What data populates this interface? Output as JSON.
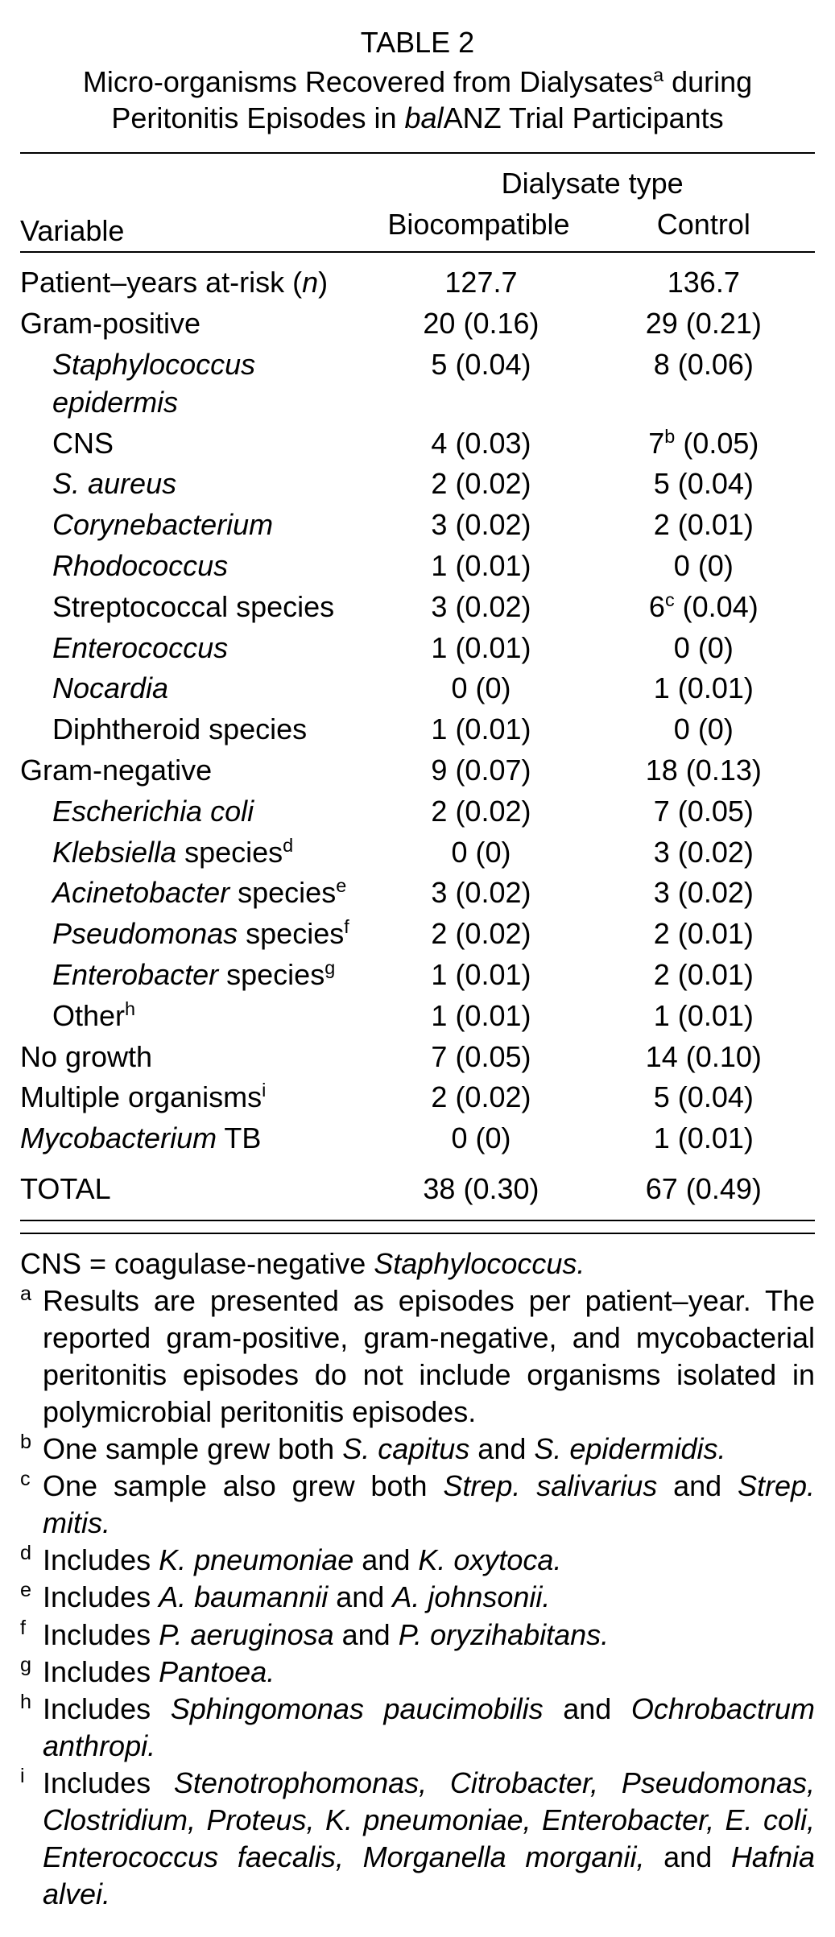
{
  "table_number": "TABLE 2",
  "title_parts": {
    "t1": "Micro-organisms Recovered from Dialysates",
    "t1_sup": "a",
    "t2": " during Peritonitis Episodes in ",
    "t3_italic": "bal",
    "t4": "ANZ Trial Participants"
  },
  "headers": {
    "variable": "Variable",
    "group": "Dialysate type",
    "col1": "Biocompatible",
    "col2": "Control"
  },
  "rows": [
    {
      "label_pre": "Patient–years at-risk (",
      "label_italic": "n",
      "label_post": ")",
      "sub": false,
      "bio": "127.7",
      "ctrl": "136.7"
    },
    {
      "label_pre": "Gram-positive",
      "sub": false,
      "bio": "20 (0.16)",
      "ctrl": "29 (0.21)"
    },
    {
      "label_italic": "Staphylococcus epidermis",
      "sub": true,
      "bio": "5 (0.04)",
      "ctrl": "8 (0.06)"
    },
    {
      "label_pre": "CNS",
      "sub": true,
      "bio": "4 (0.03)",
      "ctrl_pre": "7",
      "ctrl_sup": "b",
      "ctrl_post": " (0.05)"
    },
    {
      "label_italic": "S. aureus",
      "sub": true,
      "bio": "2 (0.02)",
      "ctrl": "5 (0.04)"
    },
    {
      "label_italic": "Corynebacterium",
      "sub": true,
      "bio": "3 (0.02)",
      "ctrl": "2 (0.01)"
    },
    {
      "label_italic": "Rhodococcus",
      "sub": true,
      "bio": "1 (0.01)",
      "ctrl": "0 (0)"
    },
    {
      "label_pre": "Streptococcal species",
      "sub": true,
      "bio": "3 (0.02)",
      "ctrl_pre": "6",
      "ctrl_sup": "c",
      "ctrl_post": " (0.04)"
    },
    {
      "label_italic": "Enterococcus",
      "sub": true,
      "bio": "1 (0.01)",
      "ctrl": "0 (0)"
    },
    {
      "label_italic": "Nocardia",
      "sub": true,
      "bio": "0 (0)",
      "ctrl": "1 (0.01)"
    },
    {
      "label_pre": "Diphtheroid species",
      "sub": true,
      "bio": "1 (0.01)",
      "ctrl": "0 (0)"
    },
    {
      "label_pre": "Gram-negative",
      "sub": false,
      "bio": "9 (0.07)",
      "ctrl": "18 (0.13)"
    },
    {
      "label_italic": "Escherichia coli",
      "sub": true,
      "bio": "2 (0.02)",
      "ctrl": "7 (0.05)"
    },
    {
      "label_italic": "Klebsiella",
      "label_post": " species",
      "label_sup": "d",
      "sub": true,
      "bio": "0 (0)",
      "ctrl": "3 (0.02)"
    },
    {
      "label_italic": "Acinetobacter",
      "label_post": " species",
      "label_sup": "e",
      "sub": true,
      "bio": "3 (0.02)",
      "ctrl": "3 (0.02)"
    },
    {
      "label_italic": "Pseudomonas",
      "label_post": " species",
      "label_sup": "f",
      "sub": true,
      "bio": "2 (0.02)",
      "ctrl": "2 (0.01)"
    },
    {
      "label_italic": "Enterobacter",
      "label_post": " species",
      "label_sup": "g",
      "sub": true,
      "bio": "1 (0.01)",
      "ctrl": "2 (0.01)"
    },
    {
      "label_pre": "Other",
      "label_sup": "h",
      "sub": true,
      "bio": "1 (0.01)",
      "ctrl": "1 (0.01)"
    },
    {
      "label_pre": "No growth",
      "sub": false,
      "bio": "7 (0.05)",
      "ctrl": "14 (0.10)"
    },
    {
      "label_pre": "Multiple organisms",
      "label_sup": "i",
      "sub": false,
      "bio": "2 (0.02)",
      "ctrl": "5 (0.04)"
    },
    {
      "label_italic": "Mycobacterium",
      "label_post": " TB",
      "sub": false,
      "bio": "0 (0)",
      "ctrl": "1 (0.01)"
    }
  ],
  "total_row": {
    "label": "TOTAL",
    "bio": "38 (0.30)",
    "ctrl": "67 (0.49)"
  },
  "footnotes": {
    "definition": {
      "parts": [
        {
          "text": "CNS = coagulase-negative "
        },
        {
          "text": "Staphylococcus.",
          "italic": true
        }
      ]
    },
    "notes": [
      {
        "marker": "a",
        "parts": [
          {
            "text": "Results are presented as episodes per patient–year. The reported gram-positive, gram-negative, and mycobacterial peritonitis episodes do not include organisms isolated in polymicrobial peritonitis episodes."
          }
        ]
      },
      {
        "marker": "b",
        "parts": [
          {
            "text": "One sample grew both "
          },
          {
            "text": "S. capitus",
            "italic": true
          },
          {
            "text": " and "
          },
          {
            "text": "S. epidermidis.",
            "italic": true
          }
        ]
      },
      {
        "marker": "c",
        "parts": [
          {
            "text": "One sample also grew both "
          },
          {
            "text": "Strep. salivarius",
            "italic": true
          },
          {
            "text": " and "
          },
          {
            "text": "Strep. mitis.",
            "italic": true
          }
        ]
      },
      {
        "marker": "d",
        "parts": [
          {
            "text": "Includes "
          },
          {
            "text": "K. pneumoniae",
            "italic": true
          },
          {
            "text": " and "
          },
          {
            "text": "K. oxytoca.",
            "italic": true
          }
        ]
      },
      {
        "marker": "e",
        "parts": [
          {
            "text": "Includes "
          },
          {
            "text": "A. baumannii",
            "italic": true
          },
          {
            "text": " and "
          },
          {
            "text": "A. johnsonii.",
            "italic": true
          }
        ]
      },
      {
        "marker": "f",
        "parts": [
          {
            "text": "Includes "
          },
          {
            "text": "P. aeruginosa",
            "italic": true
          },
          {
            "text": " and "
          },
          {
            "text": "P. oryzihabitans.",
            "italic": true
          }
        ]
      },
      {
        "marker": "g",
        "parts": [
          {
            "text": "Includes "
          },
          {
            "text": "Pantoea.",
            "italic": true
          }
        ]
      },
      {
        "marker": "h",
        "parts": [
          {
            "text": "Includes "
          },
          {
            "text": "Sphingomonas paucimobilis",
            "italic": true
          },
          {
            "text": " and "
          },
          {
            "text": "Ochrobactrum anthropi.",
            "italic": true
          }
        ]
      },
      {
        "marker": "i",
        "parts": [
          {
            "text": "Includes "
          },
          {
            "text": "Stenotrophomonas, Citrobacter, Pseudomonas, Clostridium, Proteus, K. pneumoniae, Enterobacter, E. coli, Enterococcus faecalis, Morganella morganii,",
            "italic": true
          },
          {
            "text": " and "
          },
          {
            "text": "Hafnia alvei.",
            "italic": true
          }
        ]
      }
    ]
  }
}
